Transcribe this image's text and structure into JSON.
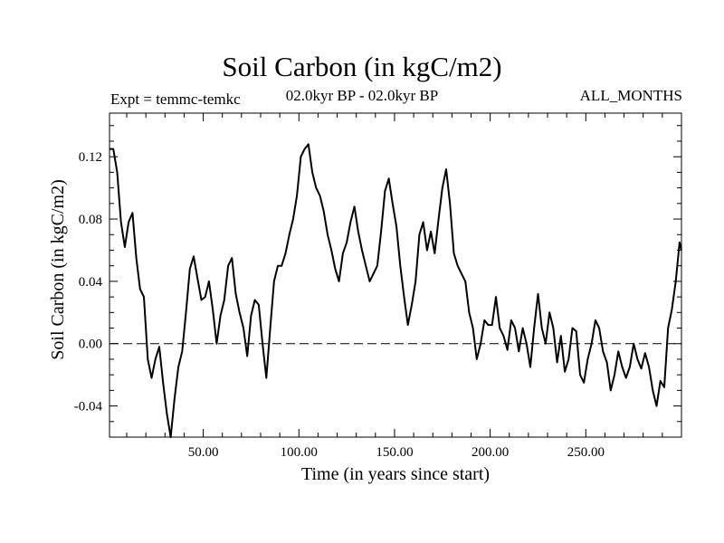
{
  "chart_data": {
    "type": "line",
    "title": "Soil Carbon (in kgC/m2)",
    "subtitle_left": "Expt = temmc-temkc",
    "subtitle_center": "02.0kyr BP - 02.0kyr BP",
    "subtitle_right": "ALL_MONTHS",
    "xlabel": "Time (in years since start)",
    "ylabel": "Soil Carbon (in kgC/m2)",
    "xlim": [
      1,
      300
    ],
    "ylim": [
      -0.06,
      0.148
    ],
    "xticks": [
      50,
      100,
      150,
      200,
      250
    ],
    "xtick_labels": [
      "50.00",
      "100.00",
      "150.00",
      "200.00",
      "250.00"
    ],
    "yticks": [
      -0.04,
      0.0,
      0.04,
      0.08,
      0.12
    ],
    "ytick_labels": [
      "-0.04",
      "0.00",
      "0.04",
      "0.08",
      "0.12"
    ],
    "zero_line": "dashed",
    "grid": false,
    "series": [
      {
        "x": [
          1,
          3,
          5,
          7,
          9,
          11,
          13,
          15,
          17,
          19,
          21,
          23,
          25,
          27,
          29,
          31,
          33,
          35,
          37,
          39,
          41,
          43,
          45,
          47,
          49,
          51,
          53,
          55,
          57,
          59,
          61,
          63,
          65,
          67,
          69,
          71,
          73,
          75,
          77,
          79,
          81,
          83,
          85,
          87,
          89,
          91,
          93,
          95,
          97,
          99,
          101,
          103,
          105,
          107,
          109,
          111,
          113,
          115,
          117,
          119,
          121,
          123,
          125,
          127,
          129,
          131,
          133,
          135,
          137,
          139,
          141,
          143,
          145,
          147,
          149,
          151,
          153,
          155,
          157,
          159,
          161,
          163,
          165,
          167,
          169,
          171,
          173,
          175,
          177,
          179,
          181,
          183,
          185,
          187,
          189,
          191,
          193,
          195,
          197,
          199,
          201,
          203,
          205,
          207,
          209,
          211,
          213,
          215,
          217,
          219,
          221,
          223,
          225,
          227,
          229,
          231,
          233,
          235,
          237,
          239,
          241,
          243,
          245,
          247,
          249,
          251,
          253,
          255,
          257,
          259,
          261,
          263,
          265,
          267,
          269,
          271,
          273,
          275,
          277,
          279,
          281,
          283,
          285,
          287,
          289,
          291,
          293,
          295,
          297,
          299,
          300
        ],
        "y": [
          0.125,
          0.125,
          0.11,
          0.078,
          0.062,
          0.078,
          0.084,
          0.055,
          0.035,
          0.03,
          -0.01,
          -0.022,
          -0.01,
          -0.002,
          -0.025,
          -0.045,
          -0.06,
          -0.035,
          -0.015,
          -0.005,
          0.02,
          0.048,
          0.056,
          0.042,
          0.028,
          0.03,
          0.04,
          0.022,
          0.0,
          0.018,
          0.028,
          0.05,
          0.055,
          0.032,
          0.02,
          0.01,
          -0.008,
          0.018,
          0.028,
          0.025,
          0.0,
          -0.022,
          0.01,
          0.04,
          0.05,
          0.05,
          0.058,
          0.07,
          0.08,
          0.095,
          0.12,
          0.125,
          0.128,
          0.11,
          0.1,
          0.095,
          0.085,
          0.07,
          0.06,
          0.048,
          0.04,
          0.058,
          0.065,
          0.078,
          0.088,
          0.072,
          0.06,
          0.05,
          0.04,
          0.045,
          0.05,
          0.072,
          0.098,
          0.106,
          0.09,
          0.075,
          0.05,
          0.03,
          0.012,
          0.025,
          0.04,
          0.07,
          0.078,
          0.06,
          0.072,
          0.058,
          0.08,
          0.1,
          0.112,
          0.09,
          0.058,
          0.05,
          0.045,
          0.04,
          0.02,
          0.01,
          -0.01,
          0.0,
          0.015,
          0.012,
          0.012,
          0.03,
          0.01,
          0.005,
          -0.004,
          0.015,
          0.01,
          -0.005,
          0.01,
          0.0,
          -0.015,
          0.01,
          0.032,
          0.01,
          0.0,
          0.02,
          0.01,
          -0.012,
          0.005,
          -0.018,
          -0.01,
          0.01,
          0.008,
          -0.02,
          -0.025,
          -0.01,
          0.0,
          0.015,
          0.01,
          -0.005,
          -0.012,
          -0.03,
          -0.02,
          -0.005,
          -0.015,
          -0.022,
          -0.015,
          0.0,
          -0.01,
          -0.016,
          -0.006,
          -0.015,
          -0.03,
          -0.04,
          -0.024,
          -0.028,
          0.01,
          0.022,
          0.04,
          0.065,
          0.06
        ]
      }
    ]
  }
}
